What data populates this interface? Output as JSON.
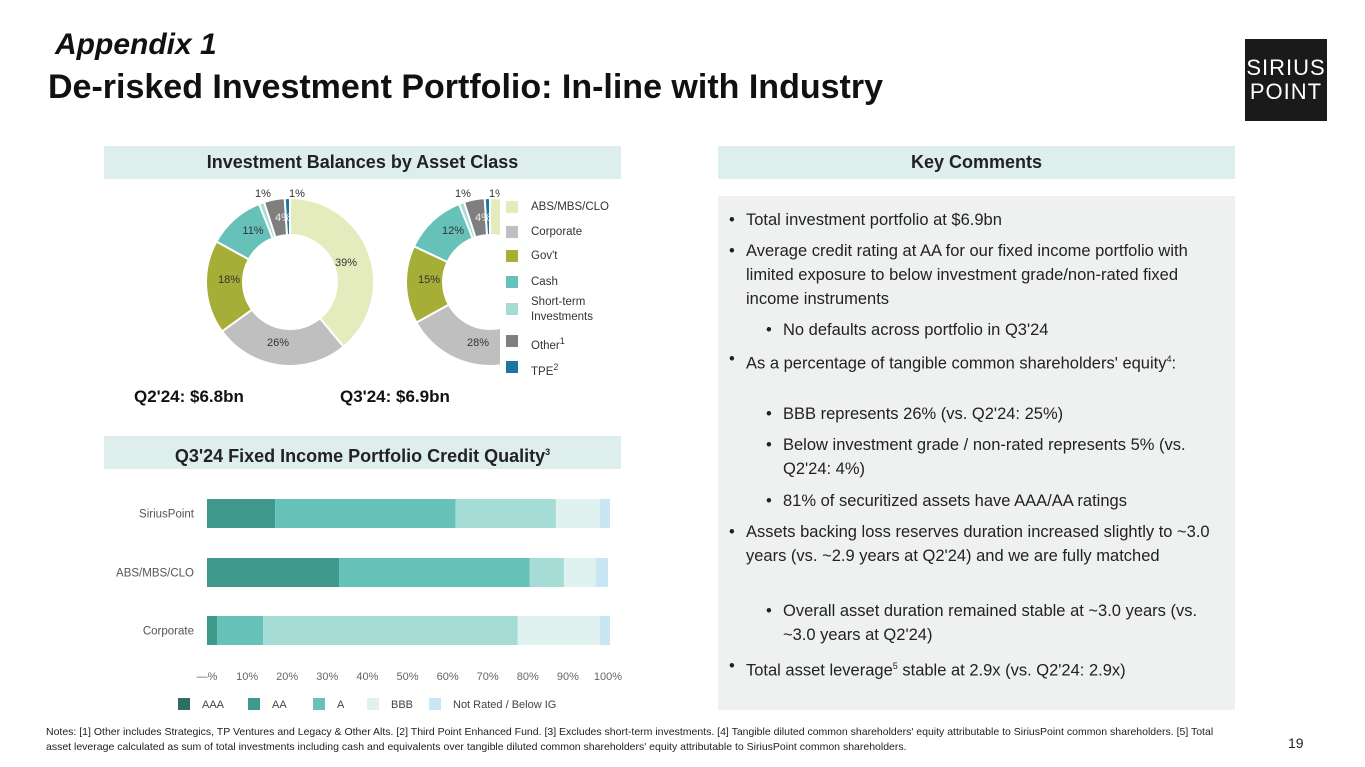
{
  "header": {
    "appendix": "Appendix 1",
    "title": "De-risked Investment Portfolio: In-line with Industry"
  },
  "logo": {
    "line1": "SIRIUS",
    "line2": "POINT"
  },
  "sections": {
    "balances_title": "Investment Balances by Asset Class",
    "credit_title": "Q3'24 Fixed Income Portfolio Credit Quality",
    "credit_title_sup": "3",
    "comments_title": "Key Comments"
  },
  "donut_captions": {
    "q2": "Q2'24: $6.8bn",
    "q3": "Q3'24: $6.9bn"
  },
  "legend": [
    {
      "label": "ABS/MBS/CLO",
      "sup": ""
    },
    {
      "label": "Corporate",
      "sup": ""
    },
    {
      "label": "Gov't",
      "sup": ""
    },
    {
      "label": "Cash",
      "sup": ""
    },
    {
      "label": "Short-term Investments",
      "sup": ""
    },
    {
      "label": "Other",
      "sup": "1"
    },
    {
      "label": "TPE",
      "sup": "2"
    }
  ],
  "colors": {
    "abs": "#e4ecbd",
    "corporate": "#bfbfbf",
    "govt": "#a6ae37",
    "cash": "#66c2b8",
    "short_term": "#a6dcd6",
    "other": "#7f7f7f",
    "tpe": "#1d75a2",
    "aaa": "#2e6d62",
    "aa": "#3f9a8c",
    "a": "#66c2b8",
    "bbb": "#a6dcd6",
    "bbb_light": "#dff2ef",
    "nr": "#c9e6f5"
  },
  "chart_data": [
    {
      "type": "pie",
      "title": "Q2'24: $6.8bn",
      "categories": [
        "ABS/MBS/CLO",
        "Corporate",
        "Gov't",
        "Cash",
        "Short-term Investments",
        "Other",
        "TPE"
      ],
      "values": [
        39,
        26,
        18,
        11,
        1,
        4,
        1
      ],
      "labels": [
        "39%",
        "26%",
        "18%",
        "11%",
        "1%",
        "4%",
        "1%"
      ]
    },
    {
      "type": "pie",
      "title": "Q3'24: $6.9bn",
      "categories": [
        "ABS/MBS/CLO",
        "Corporate",
        "Gov't",
        "Cash",
        "Short-term Investments",
        "Other",
        "TPE"
      ],
      "values": [
        39,
        28,
        15,
        12,
        1,
        4,
        1
      ],
      "labels": [
        "39%",
        "28%",
        "15%",
        "12%",
        "1%",
        "4%",
        "1%"
      ]
    },
    {
      "type": "bar",
      "orientation": "horizontal",
      "stacked": true,
      "categories": [
        "SiriusPoint",
        "ABS/MBS/CLO",
        "Corporate"
      ],
      "series": [
        {
          "name": "AAA",
          "values": [
            0,
            0,
            0
          ]
        },
        {
          "name": "AA",
          "values": [
            17,
            33,
            2.5
          ]
        },
        {
          "name": "A",
          "values": [
            45,
            47.5,
            11.5
          ]
        },
        {
          "name": "BBB",
          "values": [
            25,
            8.5,
            63.5
          ]
        },
        {
          "name": "",
          "values": [
            11,
            8,
            20.5
          ]
        },
        {
          "name": "Not Rated / Below IG",
          "values": [
            2.5,
            3,
            2.5
          ]
        }
      ],
      "xticks": [
        "—%",
        "10%",
        "20%",
        "30%",
        "40%",
        "50%",
        "60%",
        "70%",
        "80%",
        "90%",
        "100%"
      ],
      "xlim": [
        0,
        100
      ],
      "legend_labels": [
        "AAA",
        "AA",
        "A",
        "BBB",
        "Not Rated / Below IG"
      ]
    }
  ],
  "comments": [
    {
      "level": 1,
      "text": "Total investment portfolio at $6.9bn"
    },
    {
      "level": 1,
      "text": "Average credit rating at AA for our fixed income portfolio with limited exposure to below investment grade/non-rated fixed income instruments"
    },
    {
      "level": 2,
      "text": "No defaults across portfolio in Q3'24"
    },
    {
      "level": 1,
      "text": "As a percentage of tangible common shareholders' equity",
      "sup": "4",
      "after": ":"
    },
    {
      "level": 2,
      "text": "BBB represents 26% (vs. Q2'24: 25%)"
    },
    {
      "level": 2,
      "text": "Below investment grade / non-rated represents 5% (vs. Q2'24: 4%)"
    },
    {
      "level": 2,
      "text": "81% of securitized assets have AAA/AA ratings"
    },
    {
      "level": 1,
      "text": "Assets backing loss reserves duration increased slightly to ~3.0 years (vs. ~2.9 years at Q2'24) and we are fully matched"
    },
    {
      "level": 2,
      "text": "Overall asset duration remained stable at ~3.0 years (vs. ~3.0 years at Q2'24)"
    },
    {
      "level": 1,
      "text": "Total asset leverage",
      "sup": "5",
      "after": " stable at 2.9x (vs. Q2'24: 2.9x)"
    }
  ],
  "notes": "Notes: [1] Other includes Strategics, TP Ventures and Legacy & Other Alts. [2] Third Point Enhanced Fund. [3] Excludes short-term investments. [4] Tangible diluted common shareholders' equity attributable to SiriusPoint common shareholders. [5] Total asset leverage calculated as sum of total investments including cash and equivalents over tangible diluted common shareholders' equity attributable to SiriusPoint common shareholders.",
  "page_number": "19"
}
